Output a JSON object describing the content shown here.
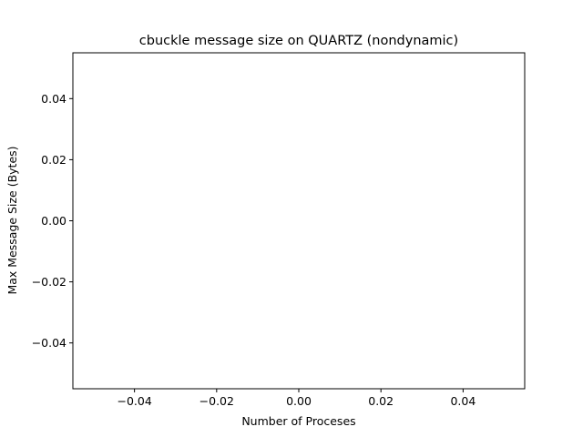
{
  "chart_data": {
    "type": "line",
    "title": "cbuckle message size on QUARTZ (nondynamic)",
    "xlabel": "Number of Proceses",
    "ylabel": "Max Message Size (Bytes)",
    "xlim": [
      -0.055,
      0.055
    ],
    "ylim": [
      -0.055,
      0.055
    ],
    "xticks": [
      -0.04,
      -0.02,
      0.0,
      0.02,
      0.04
    ],
    "xtick_labels": [
      "−0.04",
      "−0.02",
      "0.00",
      "0.02",
      "0.04"
    ],
    "yticks": [
      -0.04,
      -0.02,
      0.0,
      0.02,
      0.04
    ],
    "ytick_labels": [
      "−0.04",
      "−0.02",
      "0.00",
      "0.02",
      "0.04"
    ],
    "grid": false,
    "series": []
  }
}
